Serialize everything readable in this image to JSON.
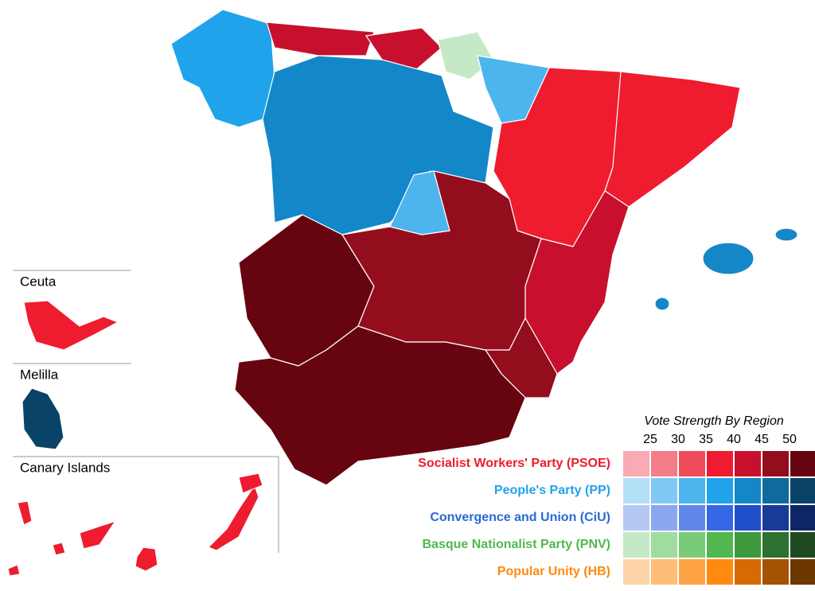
{
  "insets": [
    "Ceuta",
    "Melilla",
    "Canary Islands"
  ],
  "legend": {
    "title": "Vote Strength By Region",
    "scale": [
      25,
      30,
      35,
      40,
      45,
      50
    ],
    "parties": [
      {
        "name": "Socialist Workers' Party (PSOE)",
        "color": "#ee1c2e",
        "shades": [
          "#f9aab4",
          "#f47d88",
          "#f04b5a",
          "#ee1c2e",
          "#c8102e",
          "#940d1c",
          "#66050f"
        ]
      },
      {
        "name": "People's Party (PP)",
        "color": "#20a3ea",
        "shades": [
          "#b3dff7",
          "#7fc9f2",
          "#4cb5ee",
          "#20a3ea",
          "#1487c8",
          "#0f6a9e",
          "#0a4368"
        ]
      },
      {
        "name": "Convergence and Union (CiU)",
        "color": "#2a6ad8",
        "shades": [
          "#b5c8f3",
          "#8aa8ef",
          "#5f88ea",
          "#3468e6",
          "#1f4fc9",
          "#183b96",
          "#0e2566"
        ]
      },
      {
        "name": "Basque Nationalist Party (PNV)",
        "color": "#4fb84f",
        "shades": [
          "#c5e9c7",
          "#a1dc9f",
          "#7acb78",
          "#4fb84f",
          "#3c9a3d",
          "#2d7030",
          "#1f4a20"
        ]
      },
      {
        "name": "Popular Unity (HB)",
        "color": "#ff8a0f",
        "shades": [
          "#fed5a9",
          "#ffbd78",
          "#ffa446",
          "#ff8a0f",
          "#d76a04",
          "#a45204",
          "#6d3701"
        ]
      }
    ]
  }
}
